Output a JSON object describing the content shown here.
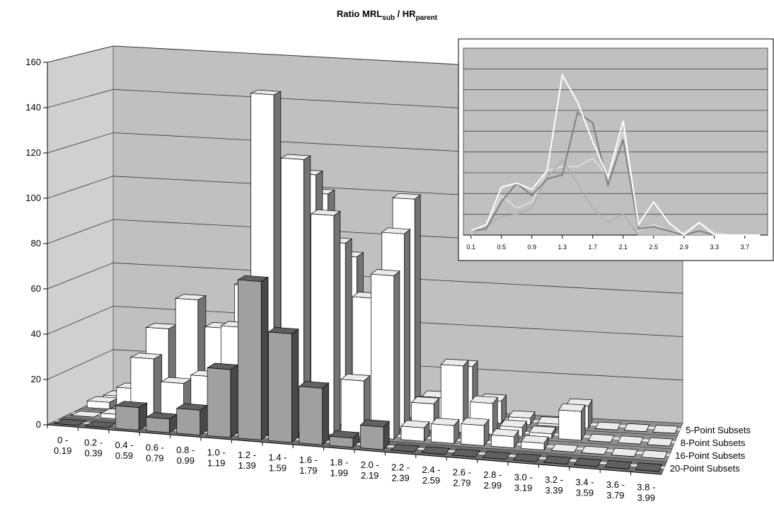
{
  "chart_data": [
    {
      "type": "bar3d",
      "title": [
        "Ratio MRL",
        "sub",
        " / HR",
        "parent"
      ],
      "categories": [
        [
          "0 -",
          "0.19"
        ],
        [
          "0.2 -",
          "0.39"
        ],
        [
          "0.4 -",
          "0.59"
        ],
        [
          "0.6 -",
          "0.79"
        ],
        [
          "0.8 -",
          "0.99"
        ],
        [
          "1.0 -",
          "1.19"
        ],
        [
          "1.2 -",
          "1.39"
        ],
        [
          "1.4 -",
          "1.59"
        ],
        [
          "1.6 -",
          "1.79"
        ],
        [
          "1.8 -",
          "1.99"
        ],
        [
          "2.0 -",
          "2.19"
        ],
        [
          "2.2 -",
          "2.39"
        ],
        [
          "2.4 -",
          "2.59"
        ],
        [
          "2.6 -",
          "2.79"
        ],
        [
          "2.8 -",
          "2.99"
        ],
        [
          "3.0 -",
          "3.19"
        ],
        [
          "3.2 -",
          "3.39"
        ],
        [
          "3.4 -",
          "3.59"
        ],
        [
          "3.6 -",
          "3.79"
        ],
        [
          "3.8 -",
          "3.99"
        ]
      ],
      "series": [
        {
          "name": "20-Point Subsets",
          "color": "#a0a0a0",
          "values": [
            0,
            0,
            10,
            6,
            11,
            30,
            70,
            48,
            25,
            4,
            10,
            0,
            0,
            0,
            0,
            0,
            0,
            0,
            0,
            0
          ]
        },
        {
          "name": "16-Point Subsets",
          "color": "#ffffff",
          "values": [
            0,
            2,
            28,
            18,
            22,
            45,
            150,
            122,
            98,
            25,
            73,
            6,
            8,
            9,
            5,
            3,
            0,
            0,
            0,
            0
          ]
        },
        {
          "name": "8-Point Subsets",
          "color": "#ffffff",
          "values": [
            3,
            10,
            38,
            52,
            40,
            60,
            105,
            112,
            82,
            58,
            88,
            12,
            30,
            14,
            4,
            2,
            13,
            0,
            0,
            0
          ]
        },
        {
          "name": "5-Point Subsets",
          "color": "#ffffff",
          "values": [
            2,
            5,
            20,
            30,
            35,
            45,
            110,
            100,
            72,
            40,
            100,
            10,
            25,
            10,
            3,
            1,
            10,
            0,
            0,
            0
          ]
        }
      ],
      "ylim": [
        0,
        160
      ],
      "yticks": [
        0,
        20,
        40,
        60,
        80,
        100,
        120,
        140,
        160
      ],
      "grid": true
    },
    {
      "type": "line",
      "x": [
        0.1,
        0.3,
        0.5,
        0.7,
        0.9,
        1.1,
        1.3,
        1.5,
        1.7,
        1.9,
        2.1,
        2.3,
        2.5,
        2.7,
        2.9,
        3.1,
        3.3,
        3.5,
        3.7,
        3.9
      ],
      "xlim": [
        0,
        4
      ],
      "xticks": [
        0.1,
        0.5,
        0.9,
        1.3,
        1.7,
        2.1,
        2.5,
        2.9,
        3.3,
        3.7
      ],
      "ylim": [
        0,
        9
      ],
      "series": [
        {
          "color": "#dddddd",
          "values": [
            0.2,
            0.5,
            1.9,
            1.3,
            1.6,
            3.1,
            3.3,
            3.3,
            3.7,
            2.8,
            5.0,
            0.2,
            0.5,
            0.2,
            0.1,
            0.6,
            0.1,
            0,
            0,
            0
          ]
        },
        {
          "color": "#b0b0b0",
          "values": [
            0,
            0.4,
            0.9,
            1.0,
            1.3,
            2.8,
            3.6,
            2.5,
            1.3,
            0.6,
            1.0,
            0,
            0,
            0,
            0,
            0,
            0,
            0,
            0,
            0
          ]
        },
        {
          "color": "#808080",
          "values": [
            0.2,
            0.3,
            1.6,
            2.5,
            1.9,
            2.7,
            2.9,
            5.9,
            5.4,
            2.4,
            4.6,
            0.3,
            0.4,
            0.2,
            0,
            0.2,
            0,
            0,
            0,
            0
          ]
        },
        {
          "color": "#ffffff",
          "values": [
            0.2,
            0.5,
            2.3,
            2.5,
            2.2,
            3.1,
            7.7,
            6.4,
            4.5,
            2.8,
            5.5,
            0.5,
            1.6,
            0.6,
            0,
            0.6,
            0,
            0,
            0,
            0
          ]
        }
      ]
    }
  ]
}
